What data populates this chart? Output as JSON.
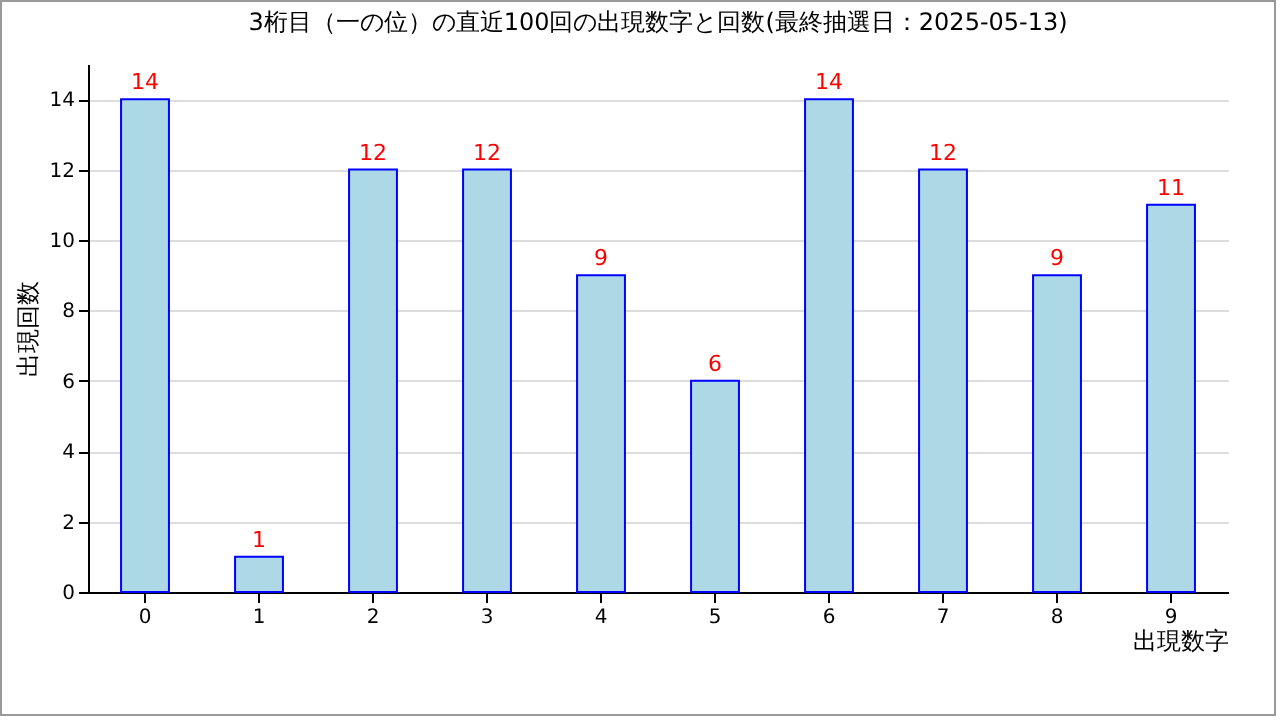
{
  "chart_data": {
    "type": "bar",
    "title": "3桁目（一の位）の直近100回の出現数字と回数(最終抽選日：2025-05-13)",
    "xlabel": "出現数字",
    "ylabel": "出現回数",
    "categories": [
      "0",
      "1",
      "2",
      "3",
      "4",
      "5",
      "6",
      "7",
      "8",
      "9"
    ],
    "values": [
      14,
      1,
      12,
      12,
      9,
      6,
      14,
      12,
      9,
      11
    ],
    "color": "#add8e6",
    "ylim": [
      0,
      15
    ],
    "yticks": [
      0,
      2,
      4,
      6,
      8,
      10,
      12,
      14
    ],
    "grid": "y",
    "data_labels": true
  }
}
